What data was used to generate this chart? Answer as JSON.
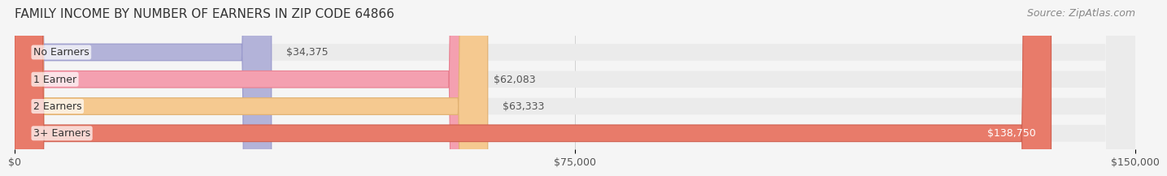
{
  "title": "FAMILY INCOME BY NUMBER OF EARNERS IN ZIP CODE 64866",
  "source": "Source: ZipAtlas.com",
  "categories": [
    "No Earners",
    "1 Earner",
    "2 Earners",
    "3+ Earners"
  ],
  "values": [
    34375,
    62083,
    63333,
    138750
  ],
  "bar_colors": [
    "#b3b3d9",
    "#f4a0b0",
    "#f5c990",
    "#e87b6a"
  ],
  "bar_edge_colors": [
    "#9999cc",
    "#e88090",
    "#e0b070",
    "#d06050"
  ],
  "label_colors": [
    "#555555",
    "#555555",
    "#555555",
    "#ffffff"
  ],
  "value_labels": [
    "$34,375",
    "$62,083",
    "$63,333",
    "$138,750"
  ],
  "x_ticks": [
    0,
    75000,
    150000
  ],
  "x_tick_labels": [
    "$0",
    "$75,000",
    "$150,000"
  ],
  "xlim": [
    0,
    150000
  ],
  "background_color": "#f5f5f5",
  "bar_background_color": "#ebebeb",
  "title_fontsize": 11,
  "source_fontsize": 9,
  "label_fontsize": 9,
  "value_fontsize": 9,
  "tick_fontsize": 9
}
